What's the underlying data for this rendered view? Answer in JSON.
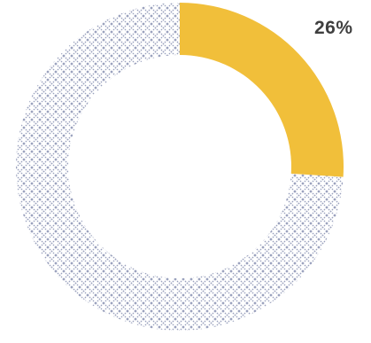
{
  "chart_data": {
    "type": "pie",
    "variant": "donut",
    "slices": [
      {
        "value": 26,
        "color": "#f1bf3a",
        "pattern": "solid"
      },
      {
        "value": 74,
        "color": "#9aa1bd",
        "pattern": "crosshatch"
      }
    ],
    "data_labels": [
      {
        "text": "26%"
      }
    ],
    "start_angle": "12 o'clock",
    "direction": "clockwise"
  }
}
